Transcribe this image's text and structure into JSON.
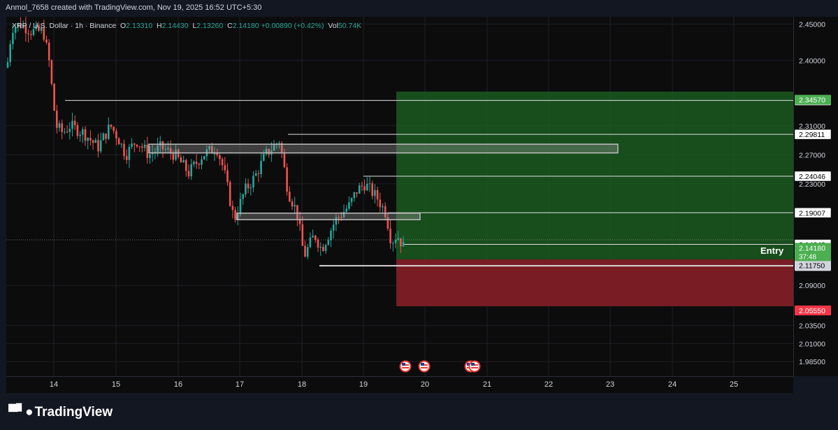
{
  "header": {
    "attribution": "Anmol_7658 created with TradingView.com, Nov 19, 2025 16:52 UTC+5:30"
  },
  "legend": {
    "symbol": "XRP / U.S. Dollar · 1h · Binance",
    "open_label": "O",
    "open": "2.13310",
    "high_label": "H",
    "high": "2.14430",
    "low_label": "L",
    "low": "2.13260",
    "close_label": "C",
    "close": "2.14180",
    "change": "+0.00890 (+0.42%)",
    "vol_label": "Vol",
    "vol": "50.74K"
  },
  "position": {
    "entry_label": "Entry",
    "target": "2.34570",
    "current_price": "2.14180",
    "countdown": "37:48",
    "entry": "2.11750",
    "stop": "2.05550",
    "profit_color": "#1b5e20",
    "loss_color": "#7f1d25"
  },
  "footer": {
    "brand": "TradingView"
  },
  "colors": {
    "up": "#26a69a",
    "down": "#ef5350",
    "background": "#0c0c0c"
  },
  "icons": [
    "us-flag-event-icon",
    "us-flag-event-icon",
    "us-flag-event-icon"
  ],
  "chart_data": {
    "type": "candlestick",
    "symbol": "XRP / U.S. Dollar",
    "interval": "1h",
    "ylim": [
      1.965,
      2.46
    ],
    "x_ticks": [
      "14",
      "15",
      "16",
      "17",
      "18",
      "19",
      "20",
      "21",
      "22",
      "23",
      "24",
      "25"
    ],
    "y_ticks": [
      "2.45000",
      "2.40000",
      "2.31000",
      "2.27000",
      "2.23000",
      "2.09000",
      "2.03500",
      "2.01000",
      "1.98500"
    ],
    "price_levels": [
      "2.34476",
      "2.29811",
      "2.24046",
      "2.19007",
      "2.14649",
      "2.11659"
    ],
    "zones": [
      {
        "name": "supply-zone",
        "low": 2.2725,
        "high": 2.2845
      },
      {
        "name": "demand-zone",
        "low": 2.1805,
        "high": 2.1895
      }
    ],
    "candles_key_points": [
      {
        "x": "13 Nov",
        "y": 2.45
      },
      {
        "x": "14",
        "y": 2.32
      },
      {
        "x": "15",
        "y": 2.33
      },
      {
        "x": "16",
        "y": 2.25
      },
      {
        "x": "17",
        "y": 2.17
      },
      {
        "x": "17.7",
        "y": 2.29
      },
      {
        "x": "18.1",
        "y": 2.12
      },
      {
        "x": "18.9",
        "y": 2.24
      },
      {
        "x": "19.6",
        "y": 2.1418
      }
    ],
    "grid": true
  }
}
